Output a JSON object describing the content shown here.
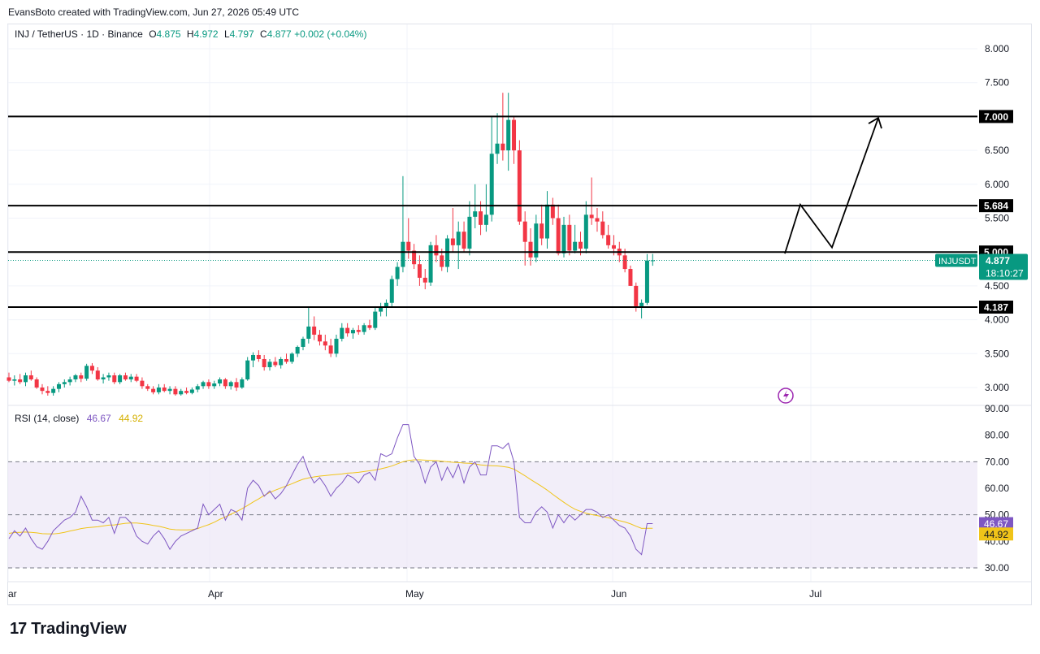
{
  "caption": "EvansBoto created with TradingView.com, Jun 27, 2026 05:49 UTC",
  "symbol": {
    "title": "INJ / TetherUS · 1D · Binance",
    "o_label": "O",
    "o": "4.875",
    "h_label": "H",
    "h": "4.972",
    "l_label": "L",
    "l": "4.797",
    "c_label": "C",
    "c": "4.877",
    "change": "+0.002 (+0.04%)"
  },
  "rsi_legend": {
    "label": "RSI (14, close)",
    "rsi": "46.67",
    "ma": "44.92"
  },
  "brand": {
    "logo": "17",
    "name": "TradingView"
  },
  "colors": {
    "up": "#089981",
    "down": "#f23645",
    "rsi": "#7e57c2",
    "rsi_ma": "#f0c419",
    "band": "#ede7f6"
  },
  "chart_data": [
    {
      "type": "candlestick",
      "symbol": "INJUSDT",
      "x_tick_labels": [
        "ar",
        "Apr",
        "May",
        "Jun",
        "Jul"
      ],
      "y_tick_labels": [
        "3.000",
        "3.500",
        "4.000",
        "4.500",
        "5.000",
        "5.500",
        "6.000",
        "6.500",
        "7.000",
        "7.500",
        "8.000"
      ],
      "ylim": [
        2.7,
        8.2
      ],
      "grid": true,
      "levels": [
        {
          "label": "7.000",
          "value": 7.0
        },
        {
          "label": "5.684",
          "value": 5.684
        },
        {
          "label": "5.000",
          "value": 5.0
        },
        {
          "label": "4.187",
          "value": 4.187
        }
      ],
      "last_price": {
        "symbol": "INJUSDT",
        "label": "4.877",
        "value": 4.877,
        "countdown": "18:10:27"
      },
      "projection_path": [
        4.977,
        5.7,
        5.067,
        6.98
      ],
      "candles": [
        [
          3.15,
          3.22,
          3.08,
          3.1
        ],
        [
          3.1,
          3.18,
          3.03,
          3.12
        ],
        [
          3.12,
          3.2,
          3.05,
          3.08
        ],
        [
          3.08,
          3.22,
          3.02,
          3.18
        ],
        [
          3.18,
          3.25,
          3.1,
          3.12
        ],
        [
          3.12,
          3.15,
          2.98,
          3.0
        ],
        [
          3.0,
          3.05,
          2.9,
          2.95
        ],
        [
          2.95,
          3.02,
          2.88,
          2.92
        ],
        [
          2.92,
          3.02,
          2.88,
          2.98
        ],
        [
          2.98,
          3.08,
          2.93,
          3.05
        ],
        [
          3.05,
          3.12,
          3.0,
          3.08
        ],
        [
          3.08,
          3.16,
          3.03,
          3.12
        ],
        [
          3.12,
          3.2,
          3.08,
          3.18
        ],
        [
          3.18,
          3.22,
          3.08,
          3.13
        ],
        [
          3.13,
          3.35,
          3.1,
          3.32
        ],
        [
          3.32,
          3.36,
          3.2,
          3.25
        ],
        [
          3.25,
          3.3,
          3.1,
          3.12
        ],
        [
          3.12,
          3.2,
          3.06,
          3.15
        ],
        [
          3.15,
          3.22,
          3.1,
          3.18
        ],
        [
          3.18,
          3.22,
          3.05,
          3.08
        ],
        [
          3.08,
          3.2,
          3.05,
          3.18
        ],
        [
          3.18,
          3.22,
          3.1,
          3.12
        ],
        [
          3.12,
          3.2,
          3.08,
          3.16
        ],
        [
          3.16,
          3.2,
          3.08,
          3.1
        ],
        [
          3.1,
          3.15,
          2.98,
          3.02
        ],
        [
          3.02,
          3.05,
          2.95,
          2.98
        ],
        [
          2.98,
          3.02,
          2.9,
          2.93
        ],
        [
          2.93,
          3.05,
          2.9,
          3.0
        ],
        [
          3.0,
          3.05,
          2.93,
          2.95
        ],
        [
          2.95,
          3.02,
          2.9,
          2.98
        ],
        [
          2.98,
          3.02,
          2.88,
          2.9
        ],
        [
          2.9,
          2.98,
          2.88,
          2.95
        ],
        [
          2.95,
          3.0,
          2.9,
          2.92
        ],
        [
          2.92,
          3.0,
          2.9,
          2.97
        ],
        [
          2.97,
          3.05,
          2.93,
          3.02
        ],
        [
          3.02,
          3.1,
          2.98,
          3.08
        ],
        [
          3.08,
          3.12,
          2.98,
          3.02
        ],
        [
          3.02,
          3.1,
          2.98,
          3.06
        ],
        [
          3.06,
          3.15,
          3.02,
          3.12
        ],
        [
          3.12,
          3.14,
          2.98,
          3.02
        ],
        [
          3.02,
          3.1,
          2.97,
          3.08
        ],
        [
          3.08,
          3.14,
          2.95,
          3.0
        ],
        [
          3.0,
          3.15,
          2.98,
          3.12
        ],
        [
          3.12,
          3.45,
          3.1,
          3.4
        ],
        [
          3.4,
          3.52,
          3.3,
          3.48
        ],
        [
          3.48,
          3.55,
          3.38,
          3.42
        ],
        [
          3.42,
          3.48,
          3.25,
          3.3
        ],
        [
          3.3,
          3.42,
          3.25,
          3.38
        ],
        [
          3.38,
          3.45,
          3.3,
          3.33
        ],
        [
          3.33,
          3.45,
          3.28,
          3.42
        ],
        [
          3.42,
          3.5,
          3.35,
          3.38
        ],
        [
          3.38,
          3.52,
          3.35,
          3.5
        ],
        [
          3.5,
          3.62,
          3.45,
          3.6
        ],
        [
          3.6,
          3.75,
          3.55,
          3.72
        ],
        [
          3.72,
          4.18,
          3.65,
          3.9
        ],
        [
          3.9,
          4.05,
          3.7,
          3.78
        ],
        [
          3.78,
          3.85,
          3.62,
          3.68
        ],
        [
          3.68,
          3.78,
          3.55,
          3.62
        ],
        [
          3.62,
          3.72,
          3.45,
          3.5
        ],
        [
          3.5,
          3.78,
          3.45,
          3.72
        ],
        [
          3.72,
          3.95,
          3.68,
          3.88
        ],
        [
          3.88,
          3.95,
          3.75,
          3.8
        ],
        [
          3.8,
          3.88,
          3.72,
          3.85
        ],
        [
          3.85,
          3.92,
          3.78,
          3.82
        ],
        [
          3.82,
          3.95,
          3.78,
          3.92
        ],
        [
          3.92,
          4.0,
          3.85,
          3.88
        ],
        [
          3.88,
          4.2,
          3.85,
          4.12
        ],
        [
          4.12,
          4.25,
          4.05,
          4.18
        ],
        [
          4.18,
          4.3,
          4.05,
          4.25
        ],
        [
          4.25,
          4.65,
          4.18,
          4.6
        ],
        [
          4.6,
          4.85,
          4.5,
          4.78
        ],
        [
          4.78,
          6.12,
          4.7,
          5.15
        ],
        [
          5.15,
          5.5,
          4.9,
          5.02
        ],
        [
          5.02,
          5.12,
          4.75,
          4.82
        ],
        [
          4.82,
          4.95,
          4.5,
          4.62
        ],
        [
          4.62,
          4.75,
          4.45,
          4.55
        ],
        [
          4.55,
          5.15,
          4.5,
          5.1
        ],
        [
          5.1,
          5.25,
          4.85,
          4.95
        ],
        [
          4.95,
          5.05,
          4.72,
          4.78
        ],
        [
          4.78,
          5.25,
          4.7,
          5.2
        ],
        [
          5.2,
          5.65,
          5.0,
          5.1
        ],
        [
          5.1,
          5.45,
          4.75,
          5.3
        ],
        [
          5.3,
          5.45,
          5.0,
          5.05
        ],
        [
          5.05,
          5.75,
          4.95,
          5.52
        ],
        [
          5.52,
          6.0,
          5.35,
          5.6
        ],
        [
          5.6,
          5.75,
          5.25,
          5.4
        ],
        [
          5.4,
          6.0,
          5.3,
          5.55
        ],
        [
          5.55,
          7.0,
          5.45,
          6.45
        ],
        [
          6.45,
          7.05,
          6.3,
          6.6
        ],
        [
          6.6,
          7.35,
          6.35,
          6.5
        ],
        [
          6.5,
          7.35,
          6.2,
          6.95
        ],
        [
          6.95,
          7.0,
          6.3,
          6.5
        ],
        [
          6.5,
          6.65,
          5.4,
          5.45
        ],
        [
          5.45,
          5.6,
          4.8,
          5.15
        ],
        [
          5.15,
          5.35,
          4.8,
          4.92
        ],
        [
          4.92,
          5.55,
          4.85,
          5.42
        ],
        [
          5.42,
          5.7,
          5.1,
          5.2
        ],
        [
          5.2,
          5.9,
          5.05,
          5.7
        ],
        [
          5.7,
          5.8,
          5.4,
          5.5
        ],
        [
          5.5,
          5.7,
          4.95,
          4.98
        ],
        [
          4.98,
          5.52,
          4.92,
          5.4
        ],
        [
          5.4,
          5.55,
          4.95,
          5.02
        ],
        [
          5.02,
          5.4,
          4.98,
          5.15
        ],
        [
          5.15,
          5.3,
          4.95,
          5.05
        ],
        [
          5.05,
          5.75,
          4.98,
          5.55
        ],
        [
          5.55,
          6.1,
          5.4,
          5.5
        ],
        [
          5.5,
          5.65,
          5.3,
          5.45
        ],
        [
          5.45,
          5.6,
          5.2,
          5.25
        ],
        [
          5.25,
          5.4,
          5.05,
          5.1
        ],
        [
          5.1,
          5.25,
          4.95,
          5.05
        ],
        [
          5.05,
          5.15,
          4.85,
          4.95
        ],
        [
          4.95,
          5.05,
          4.7,
          4.75
        ],
        [
          4.75,
          4.8,
          4.5,
          4.5
        ],
        [
          4.5,
          4.55,
          4.12,
          4.2
        ],
        [
          4.2,
          4.3,
          4.02,
          4.25
        ],
        [
          4.25,
          4.97,
          4.22,
          4.875
        ],
        [
          4.875,
          4.972,
          4.797,
          4.877
        ]
      ]
    },
    {
      "type": "line",
      "name": "RSI (14, close)",
      "y_tick_labels": [
        "30.00",
        "40.00",
        "50.00",
        "60.00",
        "70.00",
        "80.00",
        "90.00"
      ],
      "ylim": [
        28,
        93
      ],
      "bands": {
        "upper": 70,
        "middle": 50,
        "lower": 30
      },
      "last": {
        "rsi": "46.67",
        "ma": "44.92"
      },
      "rsi": [
        41,
        44,
        42,
        45,
        41,
        38,
        37,
        40,
        44,
        46,
        48,
        49,
        51,
        57,
        53,
        48,
        48,
        47,
        49,
        43,
        49,
        49,
        47,
        42,
        40,
        39,
        42,
        44,
        41,
        37,
        40,
        42,
        43,
        44,
        45,
        54,
        50,
        52,
        54,
        48,
        52,
        51,
        48,
        60,
        63,
        61,
        57,
        59,
        56,
        58,
        61,
        65,
        69,
        72,
        66,
        62,
        64,
        61,
        57,
        60,
        62,
        65,
        64,
        62,
        65,
        66,
        63,
        73,
        72,
        73,
        79,
        84,
        84,
        72,
        69,
        62,
        68,
        70,
        63,
        68,
        64,
        69,
        62,
        68,
        70,
        65,
        65,
        76,
        76,
        75,
        77,
        70,
        49,
        47,
        47,
        51,
        53,
        51,
        45,
        50,
        47,
        50,
        48,
        50,
        52,
        52,
        51,
        49,
        50,
        48,
        46,
        45,
        42,
        37,
        35,
        46.67,
        46.67
      ],
      "ma": [
        43,
        43.3,
        43.4,
        43.5,
        43.4,
        43.2,
        42.9,
        42.8,
        42.8,
        43,
        43.4,
        43.9,
        44.3,
        44.8,
        45.1,
        45.3,
        45.5,
        45.8,
        46.1,
        46.2,
        46.5,
        46.8,
        46.9,
        46.9,
        46.7,
        46.4,
        46,
        45.7,
        45.2,
        44.6,
        44.4,
        44.3,
        44.3,
        44.4,
        44.8,
        45.6,
        46.3,
        47.2,
        48.3,
        49.2,
        50.2,
        51.2,
        52.3,
        53.5,
        54.8,
        56,
        57.3,
        58.4,
        59.3,
        60.1,
        60.9,
        61.7,
        62.6,
        63.4,
        63.9,
        64.3,
        64.6,
        64.8,
        65,
        65.2,
        65.4,
        65.7,
        65.8,
        66,
        66.3,
        66.6,
        66.9,
        67.3,
        67.8,
        68.4,
        69.2,
        70,
        70.5,
        70.7,
        70.7,
        70.6,
        70.5,
        70.4,
        70.2,
        70,
        69.8,
        69.7,
        69.5,
        69.4,
        69.2,
        68.8,
        68.6,
        68.5,
        68.4,
        68.2,
        67.9,
        67.2,
        66,
        64.7,
        63.3,
        62,
        60.7,
        59.3,
        57.7,
        56.2,
        54.7,
        53.3,
        52.1,
        51.3,
        50.6,
        50.1,
        49.7,
        49.3,
        48.9,
        48.4,
        47.8,
        47.3,
        46.6,
        45.7,
        44.9,
        44.92,
        44.92
      ]
    }
  ]
}
